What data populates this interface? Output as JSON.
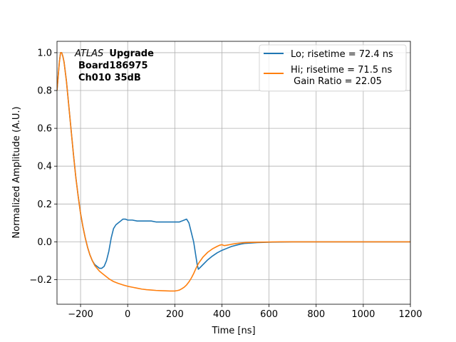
{
  "chart_data": {
    "type": "line",
    "xlabel": "Time [ns]",
    "ylabel": "Normalized Amplitude (A.U.)",
    "xlim": [
      -300,
      1200
    ],
    "ylim": [
      -0.33,
      1.06
    ],
    "xticks": [
      -200,
      0,
      200,
      400,
      600,
      800,
      1000,
      1200
    ],
    "xtick_labels": [
      "−200",
      "0",
      "200",
      "400",
      "600",
      "800",
      "1000",
      "1200"
    ],
    "yticks": [
      -0.2,
      0.0,
      0.2,
      0.4,
      0.6,
      0.8,
      1.0
    ],
    "ytick_labels": [
      "−0.2",
      "0.0",
      "0.2",
      "0.4",
      "0.6",
      "0.8",
      "1.0"
    ],
    "grid": true,
    "legend_position": "top-right",
    "annotation": {
      "italic": "ATLAS",
      "bold": "Upgrade",
      "line2": "Board186975",
      "line3": "Ch010 35dB"
    },
    "series": [
      {
        "name": "Lo; risetime = 72.4 ns",
        "color": "#1f77b4",
        "x": [
          -300,
          -290,
          -285,
          -280,
          -275,
          -270,
          -260,
          -250,
          -240,
          -230,
          -220,
          -210,
          -200,
          -190,
          -180,
          -170,
          -160,
          -150,
          -140,
          -130,
          -120,
          -110,
          -100,
          -90,
          -80,
          -70,
          -60,
          -50,
          -40,
          -30,
          -20,
          -10,
          0,
          20,
          40,
          60,
          80,
          100,
          120,
          140,
          160,
          180,
          200,
          220,
          240,
          250,
          260,
          270,
          280,
          290,
          295,
          300,
          320,
          340,
          360,
          380,
          400,
          420,
          440,
          460,
          480,
          500,
          550,
          600,
          650,
          700,
          800,
          900,
          1000,
          1100,
          1200
        ],
        "y": [
          0.8,
          0.95,
          1.0,
          1.0,
          0.98,
          0.95,
          0.85,
          0.72,
          0.59,
          0.46,
          0.34,
          0.24,
          0.15,
          0.08,
          0.02,
          -0.03,
          -0.07,
          -0.1,
          -0.12,
          -0.13,
          -0.14,
          -0.14,
          -0.13,
          -0.1,
          -0.05,
          0.02,
          0.07,
          0.09,
          0.1,
          0.11,
          0.12,
          0.12,
          0.115,
          0.115,
          0.11,
          0.11,
          0.11,
          0.11,
          0.105,
          0.105,
          0.105,
          0.105,
          0.105,
          0.105,
          0.115,
          0.12,
          0.1,
          0.05,
          0.0,
          -0.08,
          -0.12,
          -0.145,
          -0.12,
          -0.095,
          -0.075,
          -0.058,
          -0.045,
          -0.035,
          -0.025,
          -0.018,
          -0.012,
          -0.008,
          -0.004,
          -0.002,
          -0.001,
          0.0,
          0.0,
          0.0,
          0.0,
          0.0,
          0.0
        ]
      },
      {
        "name": "Hi; risetime = 71.5 ns\n Gain Ratio = 22.05",
        "color": "#ff7f0e",
        "x": [
          -300,
          -290,
          -285,
          -280,
          -275,
          -270,
          -260,
          -250,
          -240,
          -230,
          -220,
          -210,
          -200,
          -190,
          -180,
          -170,
          -160,
          -150,
          -140,
          -130,
          -120,
          -110,
          -100,
          -80,
          -60,
          -40,
          -20,
          0,
          20,
          40,
          60,
          80,
          100,
          120,
          140,
          160,
          180,
          200,
          210,
          220,
          230,
          240,
          250,
          260,
          270,
          280,
          290,
          300,
          320,
          340,
          360,
          380,
          390,
          400,
          410,
          420,
          440,
          460,
          480,
          500,
          550,
          600,
          650,
          700,
          800,
          900,
          1000,
          1100,
          1200
        ],
        "y": [
          0.8,
          0.95,
          1.0,
          1.0,
          0.98,
          0.95,
          0.85,
          0.72,
          0.59,
          0.46,
          0.34,
          0.24,
          0.15,
          0.08,
          0.02,
          -0.03,
          -0.07,
          -0.1,
          -0.125,
          -0.14,
          -0.155,
          -0.165,
          -0.175,
          -0.195,
          -0.21,
          -0.22,
          -0.228,
          -0.235,
          -0.24,
          -0.245,
          -0.25,
          -0.253,
          -0.255,
          -0.257,
          -0.258,
          -0.259,
          -0.26,
          -0.26,
          -0.258,
          -0.255,
          -0.248,
          -0.24,
          -0.228,
          -0.212,
          -0.192,
          -0.168,
          -0.14,
          -0.115,
          -0.08,
          -0.055,
          -0.037,
          -0.024,
          -0.018,
          -0.015,
          -0.02,
          -0.018,
          -0.013,
          -0.009,
          -0.006,
          -0.004,
          -0.002,
          -0.001,
          0.0,
          0.0,
          0.0,
          0.0,
          0.0,
          0.0,
          0.0
        ]
      }
    ]
  }
}
